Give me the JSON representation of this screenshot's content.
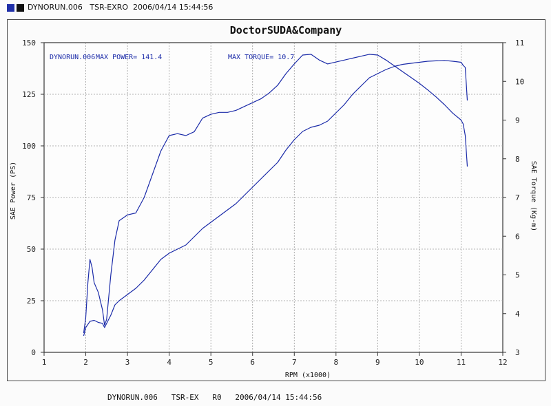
{
  "header": {
    "text": "DYNORUN.006   TSR-EXRO  2006/04/14 15:44:56",
    "logo_colors": [
      "#1f2fa8",
      "#111111"
    ]
  },
  "footer": {
    "text": "DYNORUN.006   TSR-EX   R0   2006/04/14 15:44:56"
  },
  "chart_data": {
    "type": "line",
    "title": "DoctorSUDA&Company",
    "annotations": {
      "run": "DYNORUN.006",
      "max_power": "MAX POWER= 141.4",
      "max_torque": "MAX TORQUE= 10.7"
    },
    "xlabel": "RPM (x1000)",
    "ylabel_left": "SAE Power (PS)",
    "ylabel_right": "SAE Torque (Kg-m)",
    "xlim": [
      1,
      12
    ],
    "ylim_left": [
      0,
      150
    ],
    "ylim_right": [
      3,
      11
    ],
    "x_ticks": [
      "1",
      "2",
      "3",
      "4",
      "5",
      "6",
      "7",
      "8",
      "9",
      "10",
      "11",
      "12"
    ],
    "y_left_ticks": [
      "0",
      "25",
      "50",
      "75",
      "100",
      "125",
      "150"
    ],
    "y_right_ticks": [
      "3",
      "4",
      "5",
      "6",
      "7",
      "8",
      "9",
      "10",
      "11"
    ],
    "grid": true,
    "line_color": "#1a2aa8",
    "series": [
      {
        "axis": "left",
        "points": [
          [
            1.95,
            8
          ],
          [
            2.0,
            12
          ],
          [
            2.1,
            15
          ],
          [
            2.2,
            15.5
          ],
          [
            2.3,
            14.5
          ],
          [
            2.4,
            14
          ],
          [
            2.45,
            12
          ],
          [
            2.5,
            14
          ],
          [
            2.6,
            18
          ],
          [
            2.7,
            23
          ],
          [
            2.8,
            25
          ],
          [
            3.0,
            28
          ],
          [
            3.2,
            31
          ],
          [
            3.4,
            35
          ],
          [
            3.6,
            40
          ],
          [
            3.8,
            45
          ],
          [
            4.0,
            48
          ],
          [
            4.2,
            50
          ],
          [
            4.4,
            52
          ],
          [
            4.6,
            56
          ],
          [
            4.8,
            60
          ],
          [
            5.0,
            63
          ],
          [
            5.2,
            66
          ],
          [
            5.4,
            69
          ],
          [
            5.6,
            72
          ],
          [
            5.8,
            76
          ],
          [
            6.0,
            80
          ],
          [
            6.2,
            84
          ],
          [
            6.4,
            88
          ],
          [
            6.6,
            92
          ],
          [
            6.8,
            98
          ],
          [
            7.0,
            103
          ],
          [
            7.2,
            107
          ],
          [
            7.4,
            109
          ],
          [
            7.6,
            110
          ],
          [
            7.8,
            112
          ],
          [
            8.0,
            116
          ],
          [
            8.2,
            120
          ],
          [
            8.4,
            125
          ],
          [
            8.6,
            129
          ],
          [
            8.8,
            133
          ],
          [
            9.0,
            135
          ],
          [
            9.2,
            137
          ],
          [
            9.4,
            138.5
          ],
          [
            9.6,
            139.5
          ],
          [
            9.8,
            140
          ],
          [
            10.0,
            140.5
          ],
          [
            10.2,
            141
          ],
          [
            10.4,
            141.2
          ],
          [
            10.6,
            141.4
          ],
          [
            10.8,
            141
          ],
          [
            11.0,
            140.5
          ],
          [
            11.05,
            139
          ],
          [
            11.1,
            138
          ],
          [
            11.15,
            122
          ]
        ]
      },
      {
        "axis": "right",
        "points": [
          [
            1.95,
            3.5
          ],
          [
            2.0,
            3.9
          ],
          [
            2.05,
            4.8
          ],
          [
            2.1,
            5.4
          ],
          [
            2.15,
            5.2
          ],
          [
            2.2,
            4.8
          ],
          [
            2.3,
            4.55
          ],
          [
            2.4,
            4.1
          ],
          [
            2.45,
            3.7
          ],
          [
            2.5,
            3.85
          ],
          [
            2.6,
            5.0
          ],
          [
            2.7,
            5.9
          ],
          [
            2.8,
            6.4
          ],
          [
            3.0,
            6.55
          ],
          [
            3.2,
            6.6
          ],
          [
            3.4,
            7.0
          ],
          [
            3.6,
            7.6
          ],
          [
            3.8,
            8.2
          ],
          [
            4.0,
            8.6
          ],
          [
            4.2,
            8.65
          ],
          [
            4.4,
            8.6
          ],
          [
            4.6,
            8.7
          ],
          [
            4.8,
            9.05
          ],
          [
            5.0,
            9.15
          ],
          [
            5.2,
            9.2
          ],
          [
            5.4,
            9.2
          ],
          [
            5.6,
            9.25
          ],
          [
            5.8,
            9.35
          ],
          [
            6.0,
            9.45
          ],
          [
            6.2,
            9.55
          ],
          [
            6.4,
            9.7
          ],
          [
            6.6,
            9.9
          ],
          [
            6.8,
            10.2
          ],
          [
            7.0,
            10.45
          ],
          [
            7.2,
            10.68
          ],
          [
            7.4,
            10.7
          ],
          [
            7.6,
            10.55
          ],
          [
            7.8,
            10.45
          ],
          [
            8.0,
            10.5
          ],
          [
            8.2,
            10.55
          ],
          [
            8.4,
            10.6
          ],
          [
            8.6,
            10.65
          ],
          [
            8.8,
            10.7
          ],
          [
            9.0,
            10.68
          ],
          [
            9.2,
            10.55
          ],
          [
            9.4,
            10.4
          ],
          [
            9.6,
            10.25
          ],
          [
            9.8,
            10.1
          ],
          [
            10.0,
            9.95
          ],
          [
            10.2,
            9.78
          ],
          [
            10.4,
            9.6
          ],
          [
            10.6,
            9.4
          ],
          [
            10.8,
            9.18
          ],
          [
            11.0,
            9.0
          ],
          [
            11.05,
            8.9
          ],
          [
            11.1,
            8.6
          ],
          [
            11.15,
            7.8
          ]
        ]
      }
    ]
  }
}
